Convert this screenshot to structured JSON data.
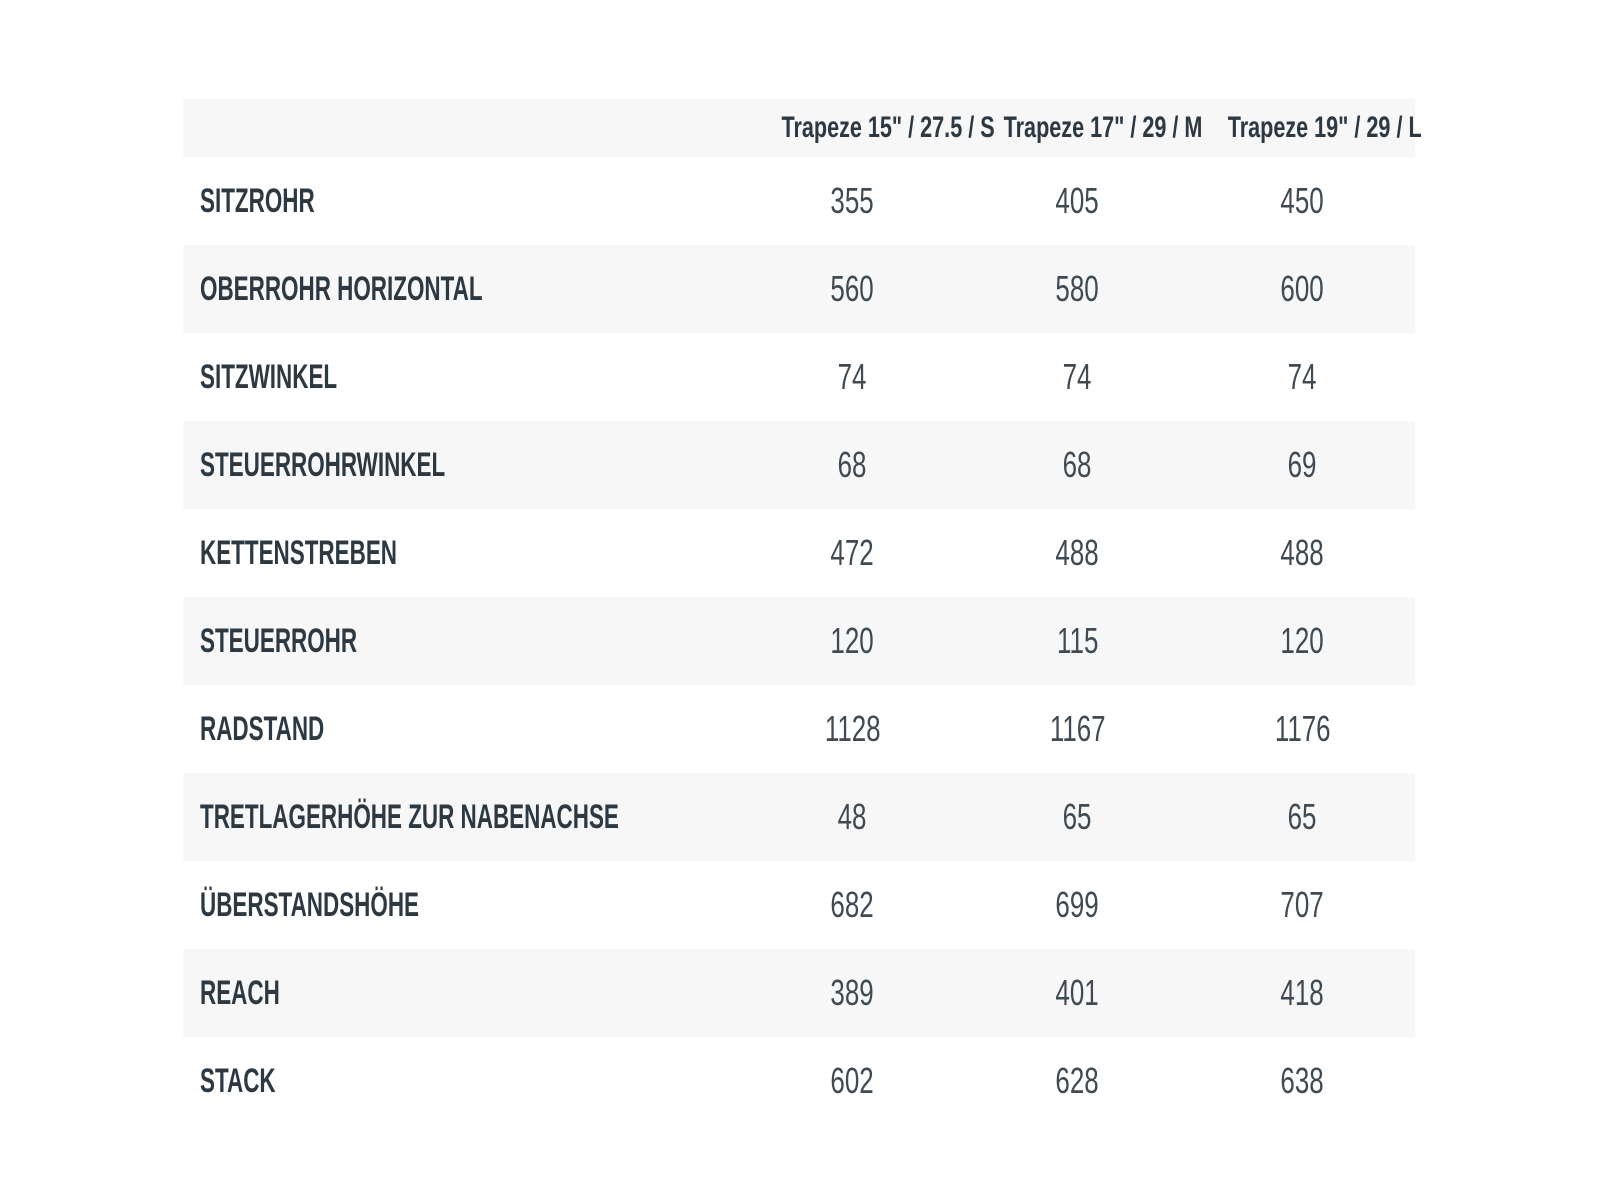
{
  "geometry_table": {
    "column_headers": [
      {
        "label": "Trapeze 15\" / 27.5 / S"
      },
      {
        "label": "Trapeze 17\" / 29 / M"
      },
      {
        "label": "Trapeze 19\" / 29 / L"
      }
    ],
    "rows": [
      {
        "label": "SITZROHR",
        "values": [
          "355",
          "405",
          "450"
        ]
      },
      {
        "label": "OBERROHR HORIZONTAL",
        "values": [
          "560",
          "580",
          "600"
        ]
      },
      {
        "label": "SITZWINKEL",
        "values": [
          "74",
          "74",
          "74"
        ]
      },
      {
        "label": "STEUERROHRWINKEL",
        "values": [
          "68",
          "68",
          "69"
        ]
      },
      {
        "label": "KETTENSTREBEN",
        "values": [
          "472",
          "488",
          "488"
        ]
      },
      {
        "label": "STEUERROHR",
        "values": [
          "120",
          "115",
          "120"
        ]
      },
      {
        "label": "RADSTAND",
        "values": [
          "1128",
          "1167",
          "1176"
        ]
      },
      {
        "label": "TRETLAGERHÖHE ZUR NABENACHSE",
        "values": [
          "48",
          "65",
          "65"
        ]
      },
      {
        "label": "ÜBERSTANDSHÖHE",
        "values": [
          "682",
          "699",
          "707"
        ]
      },
      {
        "label": "REACH",
        "values": [
          "389",
          "401",
          "418"
        ]
      },
      {
        "label": "STACK",
        "values": [
          "602",
          "628",
          "638"
        ]
      }
    ],
    "colors": {
      "page_background": "#ffffff",
      "stripe_background": "#f7f7f8",
      "label_text": "#2c3842",
      "value_text": "#3f4a52"
    }
  }
}
